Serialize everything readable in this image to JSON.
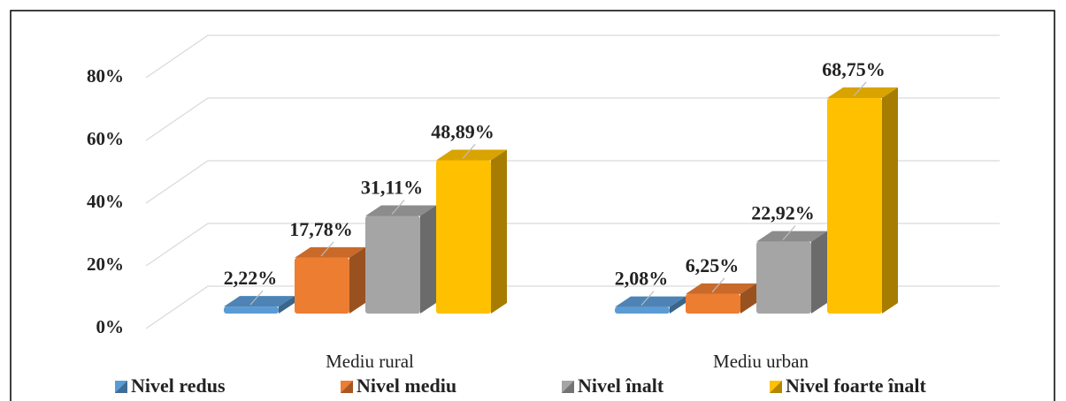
{
  "chart_data": {
    "type": "bar3d",
    "categories": [
      "Mediu rural",
      "Mediu urban"
    ],
    "series": [
      {
        "name": "Nivel redus",
        "color": "#5b9bd5",
        "values": [
          2.22,
          2.08
        ],
        "value_labels": [
          "2,22%",
          "2,08%"
        ]
      },
      {
        "name": "Nivel mediu",
        "color": "#ed7d31",
        "values": [
          17.78,
          6.25
        ],
        "value_labels": [
          "17,78%",
          "6,25%"
        ]
      },
      {
        "name": "Nivel înalt",
        "color": "#a5a5a5",
        "values": [
          31.11,
          22.92
        ],
        "value_labels": [
          "31,11%",
          "22,92%"
        ]
      },
      {
        "name": "Nivel foarte înalt",
        "color": "#ffc000",
        "values": [
          48.89,
          68.75
        ],
        "value_labels": [
          "48,89%",
          "68,75%"
        ]
      }
    ],
    "ylim": [
      0,
      80
    ],
    "yticks": [
      {
        "value": 0,
        "label": "0%"
      },
      {
        "value": 20,
        "label": "20%"
      },
      {
        "value": 40,
        "label": "40%"
      },
      {
        "value": 60,
        "label": "60%"
      },
      {
        "value": 80,
        "label": "80%"
      }
    ],
    "grid": true,
    "legend": "bottom"
  }
}
